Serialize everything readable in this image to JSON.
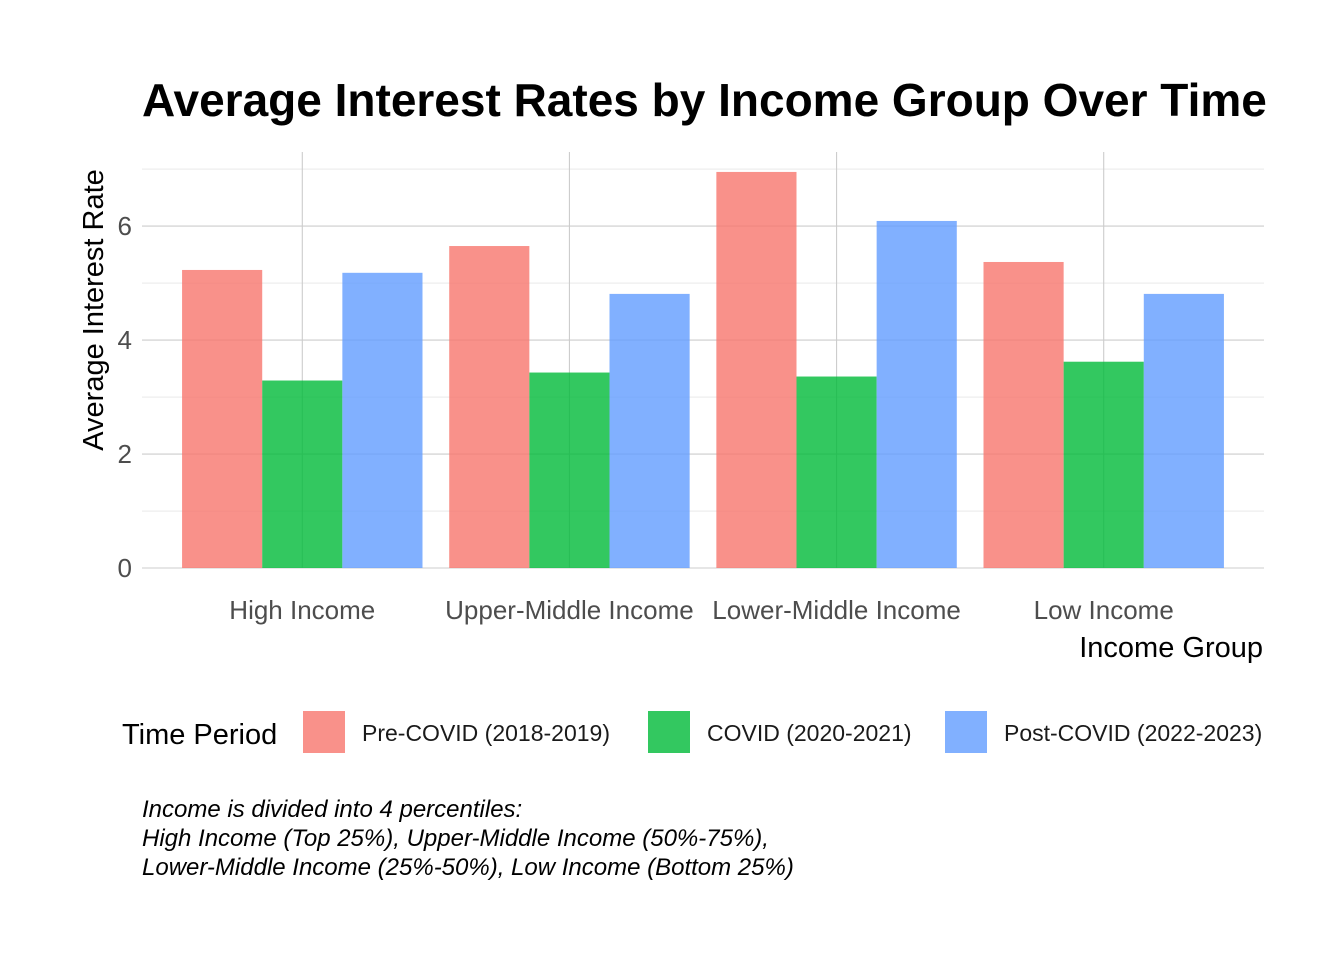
{
  "chart_data": {
    "type": "bar",
    "title": "Average Interest Rates by Income Group Over Time",
    "xlabel": "Income Group",
    "ylabel": "Average Interest Rate",
    "categories": [
      "High Income",
      "Upper-Middle Income",
      "Lower-Middle Income",
      "Low Income"
    ],
    "series": [
      {
        "name": "Pre-COVID (2018-2019)",
        "color": "#F8766D",
        "values": [
          5.23,
          5.65,
          6.95,
          5.37
        ]
      },
      {
        "name": "COVID (2020-2021)",
        "color": "#00BA38",
        "values": [
          3.29,
          3.43,
          3.36,
          3.62
        ]
      },
      {
        "name": "Post-COVID (2022-2023)",
        "color": "#619CFF",
        "values": [
          5.18,
          4.81,
          6.09,
          4.81
        ]
      }
    ],
    "ylim": [
      0,
      7.3
    ],
    "yticks": [
      0,
      2,
      4,
      6
    ],
    "grid": true,
    "legend": {
      "title": "Time Period",
      "position": "bottom"
    },
    "caption": [
      "Income is divided into 4 percentiles:",
      "High Income (Top 25%), Upper-Middle Income (50%-75%),",
      "Lower-Middle Income (25%-50%), Low Income (Bottom 25%)"
    ]
  }
}
